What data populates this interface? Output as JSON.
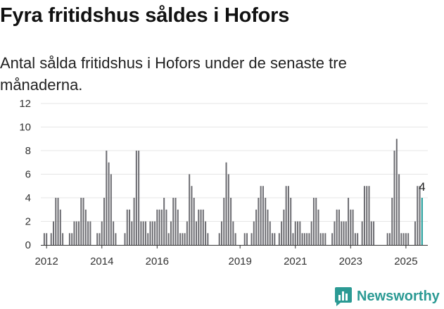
{
  "header": {
    "title": "Fyra fritidshus såldes i Hofors",
    "subtitle": "Antal sålda fritidshus i Hofors under de senaste tre månaderna."
  },
  "brand": {
    "name": "Newsworthy",
    "icon": "bar-chart-logo-icon"
  },
  "colors": {
    "bar": "#6e6e73",
    "highlight": "#1a9a96",
    "brand": "#2b9a94"
  },
  "chart_data": {
    "type": "bar",
    "title": "Fyra fritidshus såldes i Hofors",
    "subtitle": "Antal sålda fritidshus i Hofors under de senaste tre månaderna.",
    "x_unit": "month",
    "x_range": [
      "2011-11",
      "2025-10"
    ],
    "ylim": [
      0,
      12
    ],
    "yticks": [
      0,
      2,
      4,
      6,
      8,
      10,
      12
    ],
    "xticks": [
      {
        "label": "2012",
        "x": "2012-01"
      },
      {
        "label": "2014",
        "x": "2014-01"
      },
      {
        "label": "2016",
        "x": "2016-01"
      },
      {
        "label": "2019",
        "x": "2019-01"
      },
      {
        "label": "2021",
        "x": "2021-01"
      },
      {
        "label": "2023",
        "x": "2023-01"
      },
      {
        "label": "2025",
        "x": "2025-01"
      }
    ],
    "grid": true,
    "legend": "none",
    "annotation": {
      "label": "4",
      "x": "2025-08",
      "y": 4
    },
    "series": [
      {
        "values": [
          [
            "2011-12",
            1
          ],
          [
            "2012-01",
            1
          ],
          [
            "2012-03",
            1
          ],
          [
            "2012-04",
            2
          ],
          [
            "2012-05",
            4
          ],
          [
            "2012-06",
            4
          ],
          [
            "2012-07",
            3
          ],
          [
            "2012-08",
            1
          ],
          [
            "2012-11",
            1
          ],
          [
            "2012-12",
            1
          ],
          [
            "2013-01",
            2
          ],
          [
            "2013-02",
            2
          ],
          [
            "2013-03",
            2
          ],
          [
            "2013-04",
            4
          ],
          [
            "2013-05",
            4
          ],
          [
            "2013-06",
            3
          ],
          [
            "2013-07",
            2
          ],
          [
            "2013-08",
            2
          ],
          [
            "2013-11",
            1
          ],
          [
            "2013-12",
            1
          ],
          [
            "2014-01",
            2
          ],
          [
            "2014-02",
            4
          ],
          [
            "2014-03",
            8
          ],
          [
            "2014-04",
            7
          ],
          [
            "2014-05",
            6
          ],
          [
            "2014-06",
            2
          ],
          [
            "2014-07",
            1
          ],
          [
            "2014-11",
            1
          ],
          [
            "2014-12",
            3
          ],
          [
            "2015-01",
            3
          ],
          [
            "2015-02",
            2
          ],
          [
            "2015-03",
            4
          ],
          [
            "2015-04",
            8
          ],
          [
            "2015-05",
            8
          ],
          [
            "2015-06",
            2
          ],
          [
            "2015-07",
            2
          ],
          [
            "2015-08",
            2
          ],
          [
            "2015-09",
            1
          ],
          [
            "2015-10",
            2
          ],
          [
            "2015-11",
            2
          ],
          [
            "2015-12",
            2
          ],
          [
            "2016-01",
            3
          ],
          [
            "2016-02",
            3
          ],
          [
            "2016-03",
            3
          ],
          [
            "2016-04",
            4
          ],
          [
            "2016-05",
            3
          ],
          [
            "2016-06",
            1
          ],
          [
            "2016-07",
            2
          ],
          [
            "2016-08",
            4
          ],
          [
            "2016-09",
            4
          ],
          [
            "2016-10",
            3
          ],
          [
            "2016-11",
            1
          ],
          [
            "2016-12",
            1
          ],
          [
            "2017-01",
            1
          ],
          [
            "2017-02",
            2
          ],
          [
            "2017-03",
            6
          ],
          [
            "2017-04",
            5
          ],
          [
            "2017-05",
            4
          ],
          [
            "2017-06",
            2
          ],
          [
            "2017-07",
            3
          ],
          [
            "2017-08",
            3
          ],
          [
            "2017-09",
            3
          ],
          [
            "2017-10",
            2
          ],
          [
            "2017-11",
            1
          ],
          [
            "2018-04",
            1
          ],
          [
            "2018-05",
            2
          ],
          [
            "2018-06",
            4
          ],
          [
            "2018-07",
            7
          ],
          [
            "2018-08",
            6
          ],
          [
            "2018-09",
            4
          ],
          [
            "2018-10",
            2
          ],
          [
            "2018-11",
            1
          ],
          [
            "2019-03",
            1
          ],
          [
            "2019-04",
            1
          ],
          [
            "2019-06",
            1
          ],
          [
            "2019-07",
            2
          ],
          [
            "2019-08",
            3
          ],
          [
            "2019-09",
            4
          ],
          [
            "2019-10",
            5
          ],
          [
            "2019-11",
            5
          ],
          [
            "2019-12",
            4
          ],
          [
            "2020-01",
            3
          ],
          [
            "2020-02",
            2
          ],
          [
            "2020-03",
            1
          ],
          [
            "2020-04",
            1
          ],
          [
            "2020-06",
            1
          ],
          [
            "2020-07",
            2
          ],
          [
            "2020-08",
            3
          ],
          [
            "2020-09",
            5
          ],
          [
            "2020-10",
            5
          ],
          [
            "2020-11",
            4
          ],
          [
            "2020-12",
            1
          ],
          [
            "2021-01",
            2
          ],
          [
            "2021-02",
            2
          ],
          [
            "2021-03",
            2
          ],
          [
            "2021-04",
            1
          ],
          [
            "2021-05",
            1
          ],
          [
            "2021-06",
            1
          ],
          [
            "2021-07",
            1
          ],
          [
            "2021-08",
            2
          ],
          [
            "2021-09",
            4
          ],
          [
            "2021-10",
            4
          ],
          [
            "2021-11",
            3
          ],
          [
            "2021-12",
            1
          ],
          [
            "2022-01",
            1
          ],
          [
            "2022-02",
            1
          ],
          [
            "2022-05",
            1
          ],
          [
            "2022-06",
            2
          ],
          [
            "2022-07",
            3
          ],
          [
            "2022-08",
            3
          ],
          [
            "2022-09",
            2
          ],
          [
            "2022-10",
            2
          ],
          [
            "2022-11",
            2
          ],
          [
            "2022-12",
            4
          ],
          [
            "2023-01",
            3
          ],
          [
            "2023-02",
            3
          ],
          [
            "2023-03",
            1
          ],
          [
            "2023-04",
            1
          ],
          [
            "2023-06",
            2
          ],
          [
            "2023-07",
            5
          ],
          [
            "2023-08",
            5
          ],
          [
            "2023-09",
            5
          ],
          [
            "2023-10",
            2
          ],
          [
            "2023-11",
            2
          ],
          [
            "2024-05",
            1
          ],
          [
            "2024-06",
            1
          ],
          [
            "2024-07",
            4
          ],
          [
            "2024-08",
            8
          ],
          [
            "2024-09",
            9
          ],
          [
            "2024-10",
            6
          ],
          [
            "2024-11",
            1
          ],
          [
            "2024-12",
            1
          ],
          [
            "2025-01",
            1
          ],
          [
            "2025-02",
            1
          ],
          [
            "2025-05",
            2
          ],
          [
            "2025-06",
            5
          ],
          [
            "2025-07",
            5
          ],
          [
            "2025-08",
            4
          ]
        ]
      }
    ]
  }
}
